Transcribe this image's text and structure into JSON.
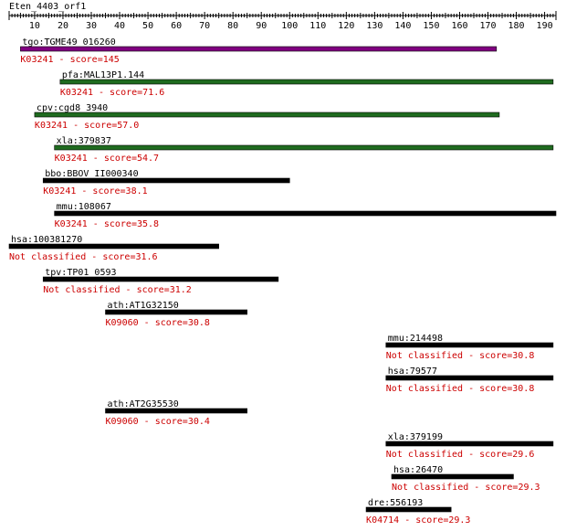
{
  "query_name": "Eten_4403_orf1",
  "ruler": {
    "min": 1,
    "max": 194,
    "tick_labels": [
      "10",
      "20",
      "30",
      "40",
      "50",
      "60",
      "70",
      "80",
      "90",
      "100",
      "110",
      "120",
      "130",
      "140",
      "150",
      "160",
      "170",
      "180",
      "190"
    ]
  },
  "colors": {
    "label_text": "#000000",
    "score_text": "#cc0000",
    "bar_black": "#000000",
    "bar_purple": "#800080",
    "bar_green": "#1f6b1f"
  },
  "hits": [
    {
      "name": "tgo:TGME49_016260",
      "annotation": "K03241 - score=145",
      "start": 5,
      "end": 173,
      "color": "purple"
    },
    {
      "name": "pfa:MAL13P1.144",
      "annotation": "K03241 - score=71.6",
      "start": 19,
      "end": 193,
      "color": "green"
    },
    {
      "name": "cpv:cgd8_3940",
      "annotation": "K03241 - score=57.0",
      "start": 10,
      "end": 174,
      "color": "green"
    },
    {
      "name": "xla:379837",
      "annotation": "K03241 - score=54.7",
      "start": 17,
      "end": 193,
      "color": "green"
    },
    {
      "name": "bbo:BBOV_II000340",
      "annotation": "K03241 - score=38.1",
      "start": 13,
      "end": 100,
      "color": "black"
    },
    {
      "name": "mmu:108067",
      "annotation": "K03241 - score=35.8",
      "start": 17,
      "end": 194,
      "color": "black"
    },
    {
      "name": "hsa:100381270",
      "annotation": "Not classified - score=31.6",
      "start": 1,
      "end": 75,
      "color": "black"
    },
    {
      "name": "tpv:TP01_0593",
      "annotation": "Not classified - score=31.2",
      "start": 13,
      "end": 96,
      "color": "black"
    },
    {
      "name": "ath:AT1G32150",
      "annotation": "K09060 - score=30.8",
      "start": 35,
      "end": 85,
      "color": "black"
    },
    {
      "name": "mmu:214498",
      "annotation": "Not classified - score=30.8",
      "start": 134,
      "end": 193,
      "color": "black"
    },
    {
      "name": "hsa:79577",
      "annotation": "Not classified - score=30.8",
      "start": 134,
      "end": 193,
      "color": "black"
    },
    {
      "name": "ath:AT2G35530",
      "annotation": "K09060 - score=30.4",
      "start": 35,
      "end": 85,
      "color": "black"
    },
    {
      "name": "xla:379199",
      "annotation": "Not classified - score=29.6",
      "start": 134,
      "end": 193,
      "color": "black"
    },
    {
      "name": "hsa:26470",
      "annotation": "Not classified - score=29.3",
      "start": 136,
      "end": 179,
      "color": "black"
    },
    {
      "name": "dre:556193",
      "annotation": "K04714 - score=29.3",
      "start": 127,
      "end": 157,
      "color": "black"
    }
  ]
}
